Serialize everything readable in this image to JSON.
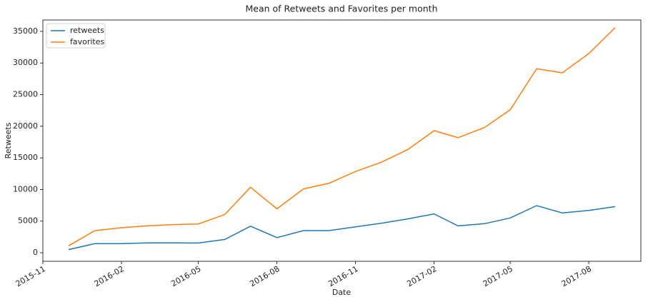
{
  "chart_data": {
    "type": "line",
    "title": "Mean of Retweets and Favorites per month",
    "x_label": "Date",
    "y_label": "Retweets",
    "x": [
      "2015-12",
      "2016-01",
      "2016-02",
      "2016-03",
      "2016-04",
      "2016-05",
      "2016-06",
      "2016-07",
      "2016-08",
      "2016-09",
      "2016-10",
      "2016-11",
      "2016-12",
      "2017-01",
      "2017-02",
      "2017-03",
      "2017-04",
      "2017-05",
      "2017-06",
      "2017-07",
      "2017-08",
      "2017-09"
    ],
    "series": [
      {
        "name": "retweets",
        "color": "#1f77b4",
        "values": [
          500,
          1450,
          1450,
          1550,
          1570,
          1540,
          2100,
          4200,
          2400,
          3500,
          3500,
          4100,
          4650,
          5350,
          6150,
          4250,
          4600,
          5500,
          7450,
          6300,
          6700,
          7300
        ]
      },
      {
        "name": "favorites",
        "color": "#ff7f0e",
        "values": [
          1100,
          3500,
          3950,
          4250,
          4450,
          4550,
          6050,
          10350,
          6950,
          10100,
          11000,
          12850,
          14300,
          16300,
          19300,
          18200,
          19800,
          22600,
          29100,
          28450,
          31500,
          35600
        ]
      }
    ],
    "xlim": [
      "2015-11",
      "2017-10"
    ],
    "xticks": [
      "2015-11",
      "2016-02",
      "2016-05",
      "2016-08",
      "2016-11",
      "2017-02",
      "2017-05",
      "2017-08"
    ],
    "ylim": [
      -1350,
      36800
    ],
    "yticks": [
      0,
      5000,
      10000,
      15000,
      20000,
      25000,
      30000,
      35000
    ],
    "legend": "upper left",
    "grid": false
  }
}
